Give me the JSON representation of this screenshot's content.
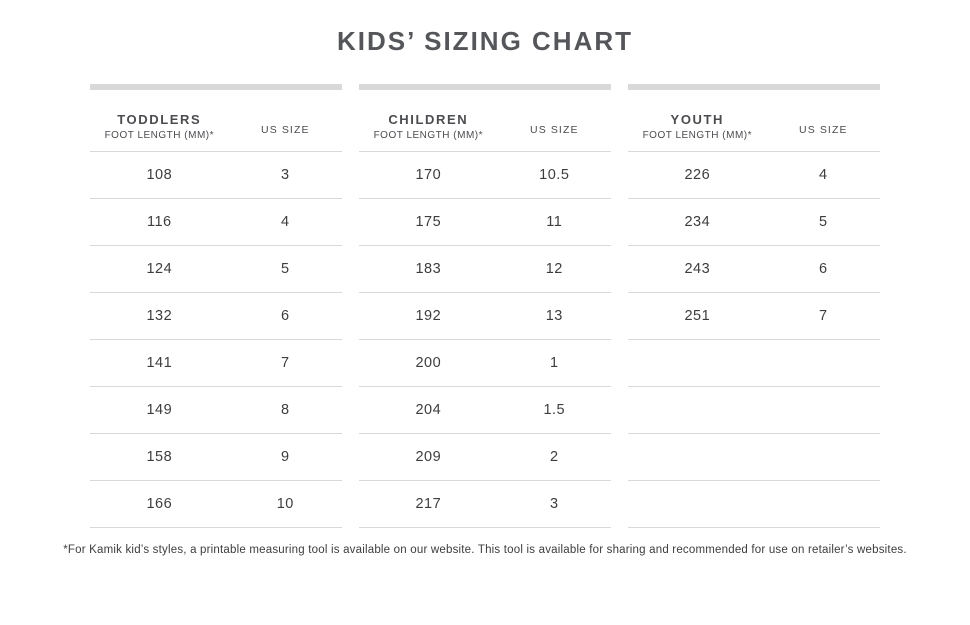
{
  "page": {
    "title": "KIDS’ SIZING CHART",
    "footnote": "*For Kamik kid’s styles, a printable measuring tool is available on our website. This tool is available for sharing and recommended for use on retailer’s websites."
  },
  "colors": {
    "title_text": "#54565a",
    "header_text": "#4a4c50",
    "body_text": "#3d3d3d",
    "divider": "#d9d9d9",
    "bar": "#d9d9d9",
    "background": "#ffffff"
  },
  "tables": [
    {
      "group": "TODDLERS",
      "foot_length_label": "FOOT LENGTH (MM)*",
      "us_size_label": "US SIZE",
      "rows": [
        {
          "mm": "108",
          "size": "3"
        },
        {
          "mm": "116",
          "size": "4"
        },
        {
          "mm": "124",
          "size": "5"
        },
        {
          "mm": "132",
          "size": "6"
        },
        {
          "mm": "141",
          "size": "7"
        },
        {
          "mm": "149",
          "size": "8"
        },
        {
          "mm": "158",
          "size": "9"
        },
        {
          "mm": "166",
          "size": "10"
        }
      ]
    },
    {
      "group": "CHILDREN",
      "foot_length_label": "FOOT LENGTH (MM)*",
      "us_size_label": "US SIZE",
      "rows": [
        {
          "mm": "170",
          "size": "10.5"
        },
        {
          "mm": "175",
          "size": "11"
        },
        {
          "mm": "183",
          "size": "12"
        },
        {
          "mm": "192",
          "size": "13"
        },
        {
          "mm": "200",
          "size": "1"
        },
        {
          "mm": "204",
          "size": "1.5"
        },
        {
          "mm": "209",
          "size": "2"
        },
        {
          "mm": "217",
          "size": "3"
        }
      ]
    },
    {
      "group": "YOUTH",
      "foot_length_label": "FOOT LENGTH (MM)*",
      "us_size_label": "US SIZE",
      "rows": [
        {
          "mm": "226",
          "size": "4"
        },
        {
          "mm": "234",
          "size": "5"
        },
        {
          "mm": "243",
          "size": "6"
        },
        {
          "mm": "251",
          "size": "7"
        },
        {
          "mm": "",
          "size": ""
        },
        {
          "mm": "",
          "size": ""
        },
        {
          "mm": "",
          "size": ""
        },
        {
          "mm": "",
          "size": ""
        }
      ]
    }
  ],
  "chart_data": {
    "type": "table",
    "title": "KIDS’ SIZING CHART",
    "sections": [
      {
        "name": "TODDLERS",
        "columns": [
          "FOOT LENGTH (MM)*",
          "US SIZE"
        ],
        "rows": [
          [
            108,
            3
          ],
          [
            116,
            4
          ],
          [
            124,
            5
          ],
          [
            132,
            6
          ],
          [
            141,
            7
          ],
          [
            149,
            8
          ],
          [
            158,
            9
          ],
          [
            166,
            10
          ]
        ]
      },
      {
        "name": "CHILDREN",
        "columns": [
          "FOOT LENGTH (MM)*",
          "US SIZE"
        ],
        "rows": [
          [
            170,
            10.5
          ],
          [
            175,
            11
          ],
          [
            183,
            12
          ],
          [
            192,
            13
          ],
          [
            200,
            1
          ],
          [
            204,
            1.5
          ],
          [
            209,
            2
          ],
          [
            217,
            3
          ]
        ]
      },
      {
        "name": "YOUTH",
        "columns": [
          "FOOT LENGTH (MM)*",
          "US SIZE"
        ],
        "rows": [
          [
            226,
            4
          ],
          [
            234,
            5
          ],
          [
            243,
            6
          ],
          [
            251,
            7
          ]
        ]
      }
    ]
  }
}
